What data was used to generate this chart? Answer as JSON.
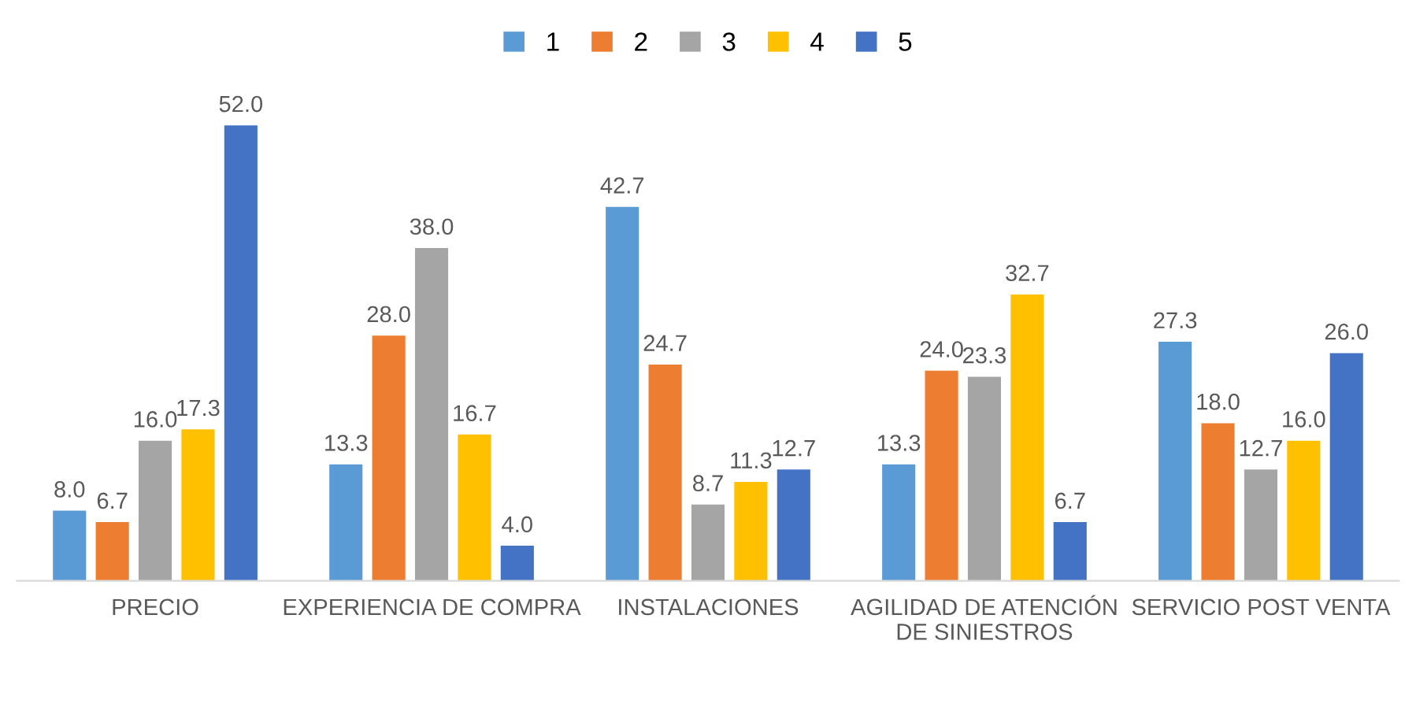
{
  "chart_data": {
    "type": "bar",
    "categories": [
      "PRECIO",
      "EXPERIENCIA DE COMPRA",
      "INSTALACIONES",
      "AGILIDAD DE ATENCIÓN DE SINIESTROS",
      "SERVICIO POST VENTA"
    ],
    "series": [
      {
        "name": "1",
        "color": "#5b9bd5",
        "values": [
          8.0,
          13.3,
          42.7,
          13.3,
          27.3
        ],
        "value_labels": [
          "8.0",
          "13.3",
          "42.7",
          "13.3",
          "27.3"
        ]
      },
      {
        "name": "2",
        "color": "#ed7d31",
        "values": [
          6.7,
          28.0,
          24.7,
          24.0,
          18.0
        ],
        "value_labels": [
          "6.7",
          "28.0",
          "24.7",
          "24.0",
          "18.0"
        ]
      },
      {
        "name": "3",
        "color": "#a5a5a5",
        "values": [
          16.0,
          38.0,
          8.7,
          23.3,
          12.7
        ],
        "value_labels": [
          "16.0",
          "38.0",
          "8.7",
          "23.3",
          "12.7"
        ]
      },
      {
        "name": "4",
        "color": "#ffc000",
        "values": [
          17.3,
          16.7,
          11.3,
          32.7,
          16.0
        ],
        "value_labels": [
          "17.3",
          "16.7",
          "11.3",
          "32.7",
          "16.0"
        ]
      },
      {
        "name": "5",
        "color": "#4472c4",
        "values": [
          52.0,
          4.0,
          12.7,
          6.7,
          26.0
        ],
        "value_labels": [
          "52.0",
          "4.0",
          "12.7",
          "6.7",
          "26.0"
        ]
      }
    ],
    "legend": "top",
    "grid": false
  }
}
